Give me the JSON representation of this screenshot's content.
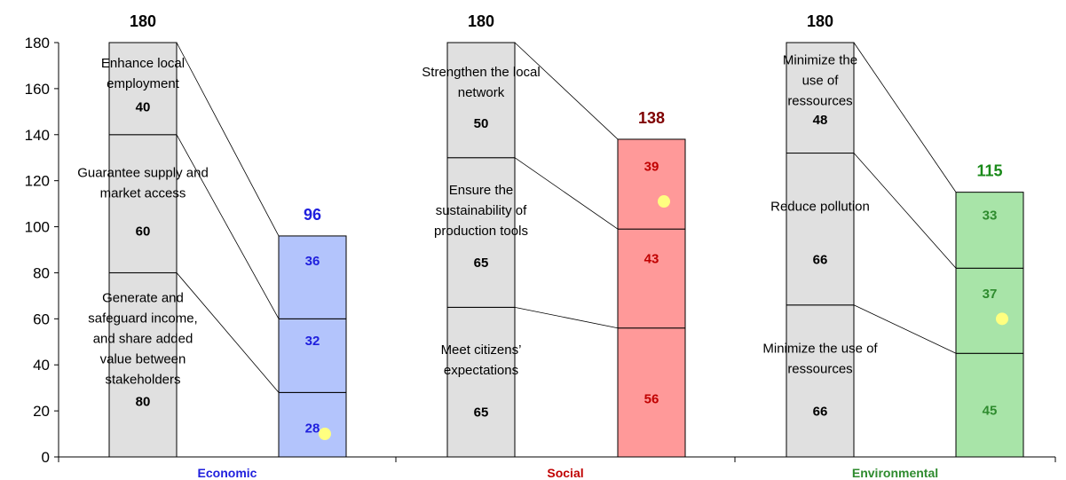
{
  "chart_data": {
    "type": "bar",
    "subtype": "stacked-waterfall-comparison",
    "ylim": [
      0,
      180
    ],
    "yticks": [
      "0",
      "20",
      "40",
      "60",
      "80",
      "100",
      "120",
      "140",
      "160",
      "180"
    ],
    "grid": false,
    "groups": [
      {
        "category": "Economic",
        "color": "#1f1fdd",
        "max_total": "180",
        "max_segments": [
          {
            "value": 80,
            "value_label": "80",
            "label": [
              "Generate and",
              "safeguard income,",
              "and share added",
              "value between",
              "stakeholders"
            ]
          },
          {
            "value": 60,
            "value_label": "60",
            "label": [
              "Guarantee supply and",
              "market access"
            ]
          },
          {
            "value": 40,
            "value_label": "40",
            "label": [
              "Enhance local",
              "employment"
            ]
          }
        ],
        "score_total": "96",
        "score_fill": "#b3c4fc",
        "score_segments": [
          {
            "value": 28,
            "value_label": "28"
          },
          {
            "value": 32,
            "value_label": "32"
          },
          {
            "value": 36,
            "value_label": "36"
          }
        ],
        "marker_value": 10
      },
      {
        "category": "Social",
        "color": "#c00000",
        "max_total": "180",
        "max_segments": [
          {
            "value": 65,
            "value_label": "65",
            "label": [
              "Meet citizens’",
              "expectations"
            ]
          },
          {
            "value": 65,
            "value_label": "65",
            "label": [
              "Ensure the",
              "sustainability of",
              "production tools"
            ]
          },
          {
            "value": 50,
            "value_label": "50",
            "label": [
              "Strengthen the local",
              "network"
            ]
          }
        ],
        "score_total": "138",
        "total_color": "#7f0000",
        "score_fill": "#ff9999",
        "score_segments": [
          {
            "value": 56,
            "value_label": "56"
          },
          {
            "value": 43,
            "value_label": "43"
          },
          {
            "value": 39,
            "value_label": "39"
          }
        ],
        "marker_value": 111
      },
      {
        "category": "Environmental",
        "color": "#2e8b2e",
        "max_total": "180",
        "max_segments": [
          {
            "value": 66,
            "value_label": "66",
            "label": [
              "Minimize the use of",
              "ressources"
            ]
          },
          {
            "value": 66,
            "value_label": "66",
            "label": [
              "Reduce pollution"
            ]
          },
          {
            "value": 48,
            "value_label": "48",
            "label": [
              "Minimize the",
              "use of",
              "ressources"
            ]
          }
        ],
        "score_total": "115",
        "total_color": "#1a8a1a",
        "score_fill": "#a8e4a8",
        "score_segments": [
          {
            "value": 45,
            "value_label": "45"
          },
          {
            "value": 37,
            "value_label": "37"
          },
          {
            "value": 33,
            "value_label": "33"
          }
        ],
        "marker_value": 60
      }
    ],
    "max_fill": "#e0e0e0",
    "marker_color": "#ffff80"
  }
}
